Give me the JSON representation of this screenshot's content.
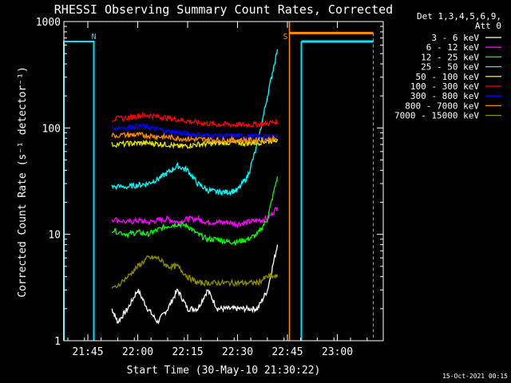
{
  "chart_data": {
    "type": "line",
    "title": "RHESSI Observing Summary Count Rates, Corrected",
    "xlabel": "Start Time (30-May-10 21:30:22)",
    "ylabel": "Corrected Count Rate (s⁻¹ detector⁻¹)",
    "yscale": "log",
    "ylim": [
      1,
      1000
    ],
    "xlim_minutes": [
      21.63,
      23.23
    ],
    "x_ticks": [
      "21:45",
      "22:00",
      "22:15",
      "22:30",
      "22:45",
      "23:00"
    ],
    "x_tick_values": [
      21.75,
      22.0,
      22.25,
      22.5,
      22.75,
      23.0
    ],
    "y_ticks": [
      "1",
      "10",
      "100",
      "1000"
    ],
    "y_tick_values": [
      1,
      10,
      100,
      1000
    ],
    "grid": false,
    "legend_placement": "right",
    "legend_header": [
      "Det 1,3,4,5,6,9,",
      "Att 0"
    ],
    "timestamp": "15-Oct-2021 00:15",
    "flag_labels": [
      {
        "text": "N",
        "x": 21.78,
        "color": "#00e5ff"
      },
      {
        "text": "S",
        "x": 22.74,
        "color": "#ff8c00"
      }
    ],
    "night_band": {
      "start": 21.68,
      "end": 22.82,
      "color": "#00e5ff",
      "level": 650
    },
    "saa_band": {
      "start": 22.76,
      "end": 23.18,
      "color": "#ff8c00",
      "level": 780
    },
    "series": [
      {
        "name": "3 - 6 keV",
        "color": "#ffffff",
        "x": [
          21.87,
          21.9,
          21.95,
          22.0,
          22.05,
          22.1,
          22.15,
          22.2,
          22.25,
          22.3,
          22.35,
          22.4,
          22.45,
          22.5,
          22.55,
          22.6,
          22.65,
          22.7
        ],
        "y": [
          2,
          1.5,
          2,
          3,
          2,
          1.5,
          2,
          3,
          2,
          2,
          3,
          2,
          2,
          2,
          2,
          2,
          3,
          8
        ]
      },
      {
        "name": "6 - 12 keV",
        "color": "#ff00ff",
        "x": [
          21.87,
          21.95,
          22.0,
          22.05,
          22.1,
          22.15,
          22.2,
          22.25,
          22.3,
          22.35,
          22.4,
          22.45,
          22.5,
          22.55,
          22.6,
          22.65,
          22.7
        ],
        "y": [
          14,
          13,
          13.5,
          13,
          13.5,
          14,
          13,
          14,
          14,
          13,
          13,
          13,
          12.5,
          13,
          13.5,
          14,
          18
        ]
      },
      {
        "name": "12 - 25 keV",
        "color": "#00ff00",
        "x": [
          21.87,
          21.95,
          22.0,
          22.05,
          22.1,
          22.15,
          22.2,
          22.25,
          22.3,
          22.35,
          22.4,
          22.45,
          22.5,
          22.55,
          22.6,
          22.65,
          22.7
        ],
        "y": [
          11,
          10,
          10.5,
          10,
          11,
          12,
          12.5,
          12,
          10,
          9,
          9,
          8.5,
          8.5,
          9,
          10,
          14,
          35
        ]
      },
      {
        "name": "25 - 50 keV",
        "color": "#00ffff",
        "x": [
          21.87,
          21.95,
          22.0,
          22.05,
          22.1,
          22.15,
          22.2,
          22.25,
          22.3,
          22.35,
          22.4,
          22.45,
          22.5,
          22.55,
          22.6,
          22.65,
          22.7
        ],
        "y": [
          28,
          28,
          29,
          30,
          33,
          38,
          44,
          40,
          30,
          26,
          25,
          25,
          26,
          35,
          70,
          200,
          550
        ]
      },
      {
        "name": "50 - 100 keV",
        "color": "#e6e600",
        "x": [
          21.87,
          21.95,
          22.0,
          22.05,
          22.1,
          22.15,
          22.2,
          22.25,
          22.3,
          22.35,
          22.4,
          22.45,
          22.5,
          22.55,
          22.6,
          22.65,
          22.7
        ],
        "y": [
          70,
          71,
          72,
          72,
          71,
          70,
          67,
          68,
          70,
          71,
          72,
          73,
          72,
          72,
          73,
          75,
          78
        ]
      },
      {
        "name": "100 - 300 keV",
        "color": "#ff0000",
        "x": [
          21.87,
          21.95,
          22.0,
          22.05,
          22.1,
          22.15,
          22.2,
          22.25,
          22.3,
          22.35,
          22.4,
          22.45,
          22.5,
          22.55,
          22.6,
          22.65,
          22.7
        ],
        "y": [
          120,
          125,
          130,
          132,
          128,
          124,
          120,
          116,
          112,
          110,
          108,
          108,
          107,
          107,
          108,
          110,
          115
        ]
      },
      {
        "name": "300 - 800 keV",
        "color": "#0000ff",
        "x": [
          21.87,
          21.95,
          22.0,
          22.05,
          22.1,
          22.15,
          22.2,
          22.25,
          22.3,
          22.35,
          22.4,
          22.45,
          22.5,
          22.55,
          22.6,
          22.65,
          22.7
        ],
        "y": [
          100,
          102,
          104,
          102,
          97,
          93,
          90,
          88,
          86,
          85,
          84,
          84,
          84,
          84,
          83,
          83,
          82
        ]
      },
      {
        "name": "800 - 7000 keV",
        "color": "#ff8c00",
        "x": [
          21.87,
          21.95,
          22.0,
          22.05,
          22.1,
          22.15,
          22.2,
          22.25,
          22.3,
          22.35,
          22.4,
          22.45,
          22.5,
          22.55,
          22.6,
          22.65,
          22.7
        ],
        "y": [
          85,
          86,
          86,
          85,
          83,
          82,
          80,
          79,
          78,
          78,
          77,
          77,
          77,
          77,
          77,
          78,
          79
        ]
      },
      {
        "name": "7000 - 15000 keV",
        "color": "#8c8c00",
        "x": [
          21.87,
          21.95,
          22.0,
          22.05,
          22.1,
          22.15,
          22.2,
          22.25,
          22.3,
          22.35,
          22.4,
          22.45,
          22.5,
          22.55,
          22.6,
          22.65,
          22.7
        ],
        "y": [
          3,
          4,
          5,
          6,
          6,
          5,
          5,
          4,
          3.5,
          3.5,
          3.5,
          3.5,
          3.5,
          3.5,
          3.5,
          4,
          4
        ]
      }
    ]
  }
}
